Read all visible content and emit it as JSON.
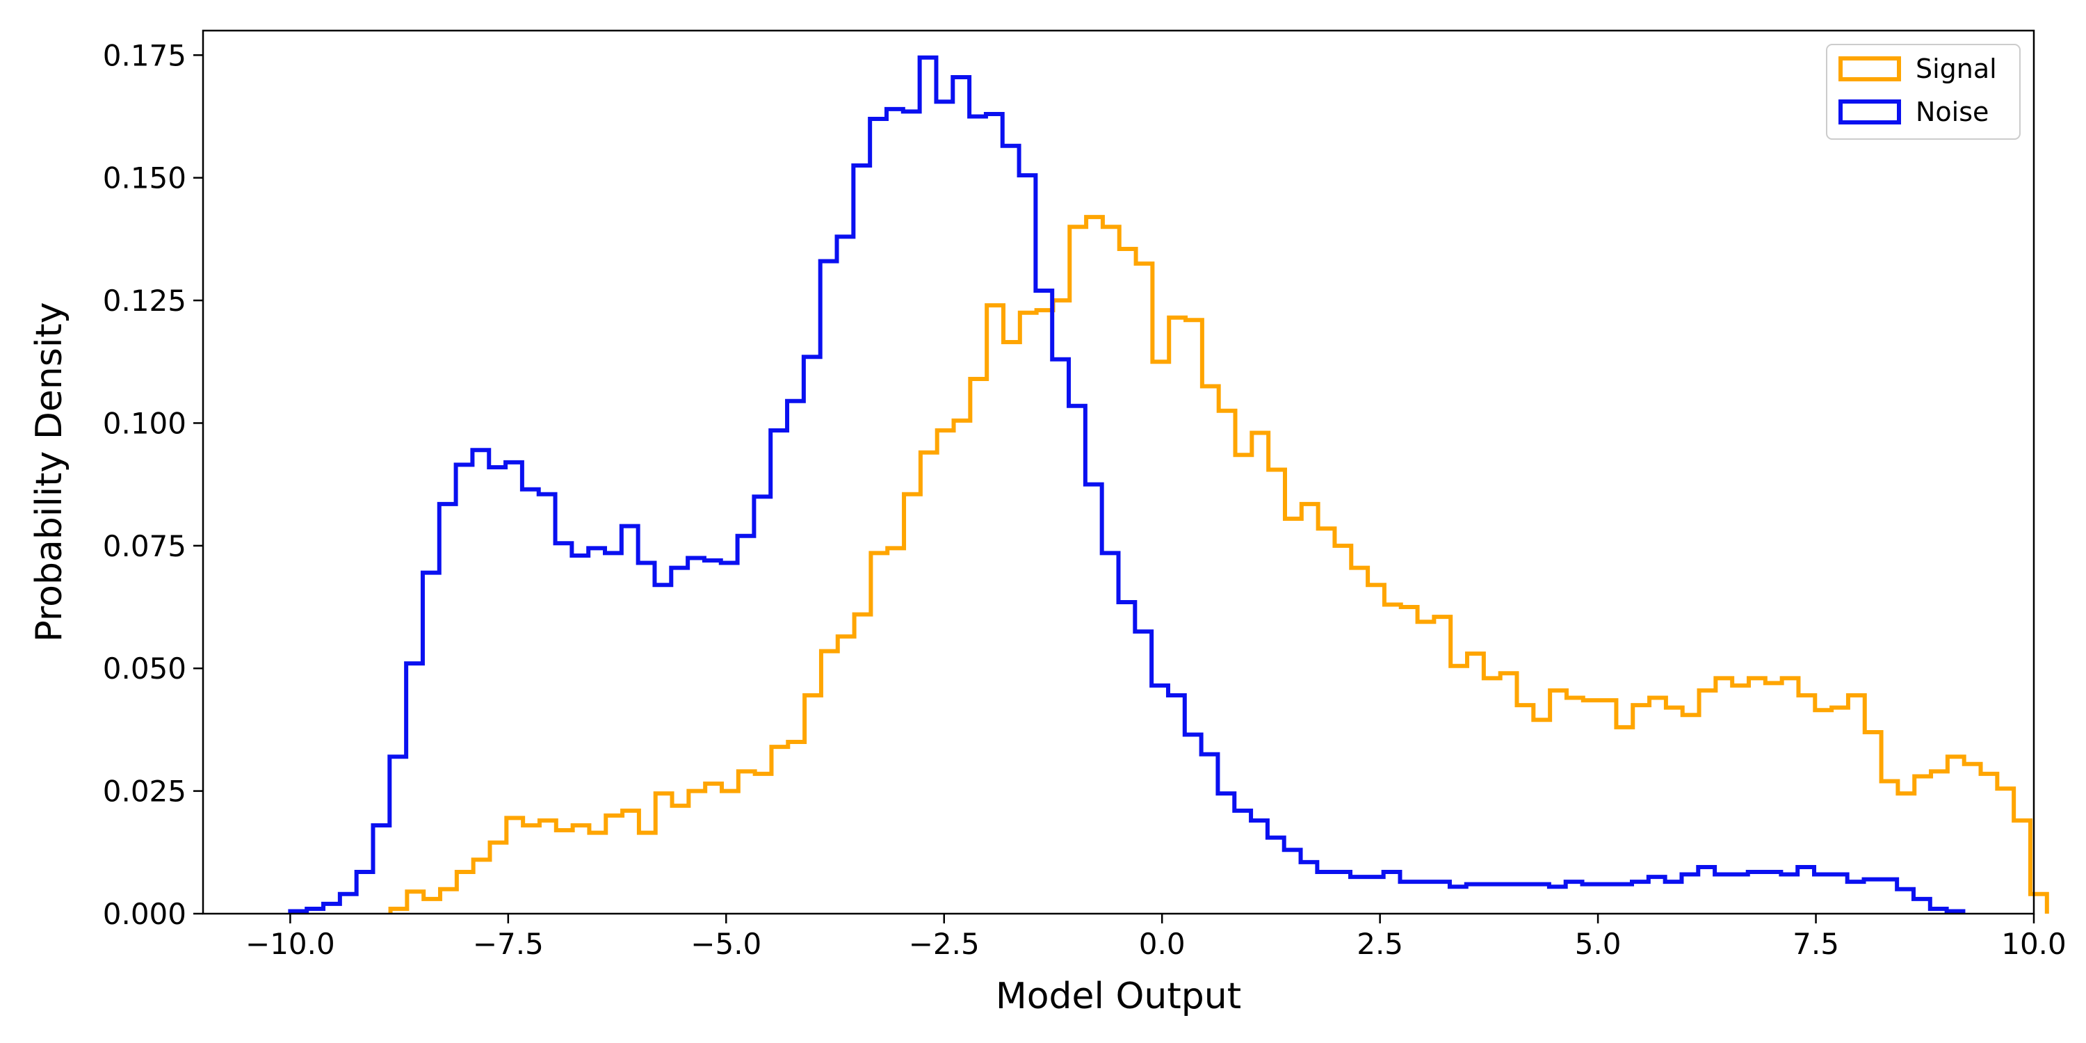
{
  "chart_data": {
    "type": "histogram",
    "title": "",
    "xlabel": "Model Output",
    "ylabel": "Probability Density",
    "xlim": [
      -11,
      10
    ],
    "ylim": [
      0,
      0.18
    ],
    "xticks": [
      -10,
      -7.5,
      -5,
      -2.5,
      0,
      2.5,
      5,
      7.5,
      10
    ],
    "xtick_labels": [
      "−10.0",
      "−7.5",
      "−5.0",
      "−2.5",
      "0.0",
      "2.5",
      "5.0",
      "7.5",
      "10.0"
    ],
    "yticks": [
      0,
      0.025,
      0.05,
      0.075,
      0.1,
      0.125,
      0.15,
      0.175
    ],
    "ytick_labels": [
      "0.000",
      "0.025",
      "0.050",
      "0.075",
      "0.100",
      "0.125",
      "0.150",
      "0.175"
    ],
    "grid": false,
    "legend_position": "top-right",
    "series": [
      {
        "name": "Signal",
        "color": "#FFA500",
        "bin_start": -8.85,
        "bin_width": 0.19,
        "values": [
          0.001,
          0.0045,
          0.003,
          0.005,
          0.0085,
          0.011,
          0.0145,
          0.0195,
          0.018,
          0.019,
          0.017,
          0.018,
          0.0165,
          0.02,
          0.021,
          0.0165,
          0.0245,
          0.022,
          0.025,
          0.0265,
          0.025,
          0.029,
          0.0285,
          0.034,
          0.035,
          0.0445,
          0.0535,
          0.0565,
          0.061,
          0.0735,
          0.0745,
          0.0855,
          0.094,
          0.0985,
          0.1005,
          0.109,
          0.124,
          0.1165,
          0.1225,
          0.123,
          0.125,
          0.14,
          0.142,
          0.14,
          0.1355,
          0.1325,
          0.1125,
          0.1215,
          0.121,
          0.1075,
          0.1025,
          0.0935,
          0.098,
          0.0905,
          0.0805,
          0.0835,
          0.0785,
          0.075,
          0.0705,
          0.067,
          0.063,
          0.0625,
          0.0595,
          0.0605,
          0.0505,
          0.053,
          0.048,
          0.049,
          0.0425,
          0.0395,
          0.0455,
          0.044,
          0.0435,
          0.0435,
          0.038,
          0.0425,
          0.044,
          0.042,
          0.0405,
          0.0455,
          0.048,
          0.0465,
          0.048,
          0.047,
          0.048,
          0.0445,
          0.0415,
          0.042,
          0.0445,
          0.037,
          0.027,
          0.0245,
          0.028,
          0.029,
          0.032,
          0.0305,
          0.0285,
          0.0255,
          0.019,
          0.004
        ]
      },
      {
        "name": "Noise",
        "color": "#0A10F0",
        "bin_start": -10.0,
        "bin_width": 0.19,
        "values": [
          0.0005,
          0.001,
          0.002,
          0.004,
          0.0085,
          0.018,
          0.032,
          0.051,
          0.0695,
          0.0835,
          0.0915,
          0.0945,
          0.091,
          0.092,
          0.0865,
          0.0855,
          0.0755,
          0.073,
          0.0745,
          0.0735,
          0.079,
          0.0715,
          0.067,
          0.0705,
          0.0725,
          0.072,
          0.0715,
          0.077,
          0.085,
          0.0985,
          0.1045,
          0.1135,
          0.133,
          0.138,
          0.1525,
          0.162,
          0.164,
          0.1635,
          0.1745,
          0.1655,
          0.1705,
          0.1625,
          0.163,
          0.1565,
          0.1505,
          0.127,
          0.113,
          0.1035,
          0.0875,
          0.0735,
          0.0635,
          0.0575,
          0.0465,
          0.0445,
          0.0365,
          0.0325,
          0.0245,
          0.021,
          0.019,
          0.0155,
          0.013,
          0.0105,
          0.0085,
          0.0085,
          0.0075,
          0.0075,
          0.0085,
          0.0065,
          0.0065,
          0.0065,
          0.0055,
          0.006,
          0.006,
          0.006,
          0.006,
          0.006,
          0.0055,
          0.0065,
          0.006,
          0.006,
          0.006,
          0.0065,
          0.0075,
          0.0065,
          0.008,
          0.0095,
          0.008,
          0.008,
          0.0085,
          0.0085,
          0.008,
          0.0095,
          0.008,
          0.008,
          0.0065,
          0.007,
          0.007,
          0.005,
          0.003,
          0.001,
          0.0005
        ]
      }
    ]
  }
}
